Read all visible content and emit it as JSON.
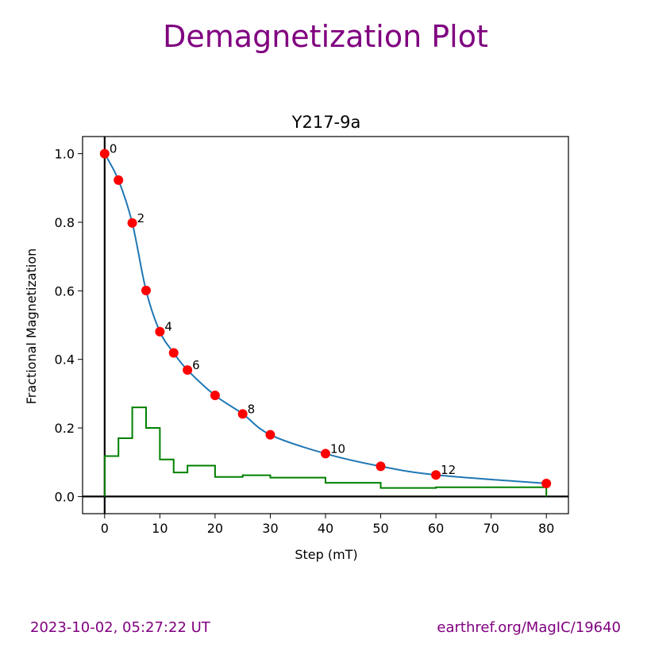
{
  "figure": {
    "suptitle": "Demagnetization Plot",
    "timestamp": "2023-10-02, 05:27:22 UT",
    "source": "earthref.org/MagIC/19640"
  },
  "colors": {
    "title": "#800080",
    "curve": "#1f77b4",
    "points": "#ff0000",
    "increments": "#008000",
    "axes_lines": "#000000"
  },
  "chart_data": {
    "type": "line",
    "title": "Y217-9a",
    "xlabel": "Step (mT)",
    "ylabel": "Fractional Magnetization",
    "xlim": [
      -4,
      84
    ],
    "ylim": [
      -0.05,
      1.05
    ],
    "xticks": [
      0,
      10,
      20,
      30,
      40,
      50,
      60,
      70,
      80
    ],
    "yticks": [
      0.0,
      0.2,
      0.4,
      0.6,
      0.8,
      1.0
    ],
    "ytick_labels": [
      "0.0",
      "0.2",
      "0.4",
      "0.6",
      "0.8",
      "1.0"
    ],
    "grid": false,
    "series": [
      {
        "kind": "demag-curve",
        "x": [
          0,
          2.5,
          5,
          7.5,
          10,
          12.5,
          15,
          20,
          25,
          30,
          40,
          50,
          60,
          80
        ],
        "y": [
          1.0,
          0.923,
          0.798,
          0.601,
          0.481,
          0.419,
          0.369,
          0.295,
          0.241,
          0.18,
          0.125,
          0.088,
          0.063,
          0.038
        ],
        "point_labels": [
          "0",
          "",
          "2",
          "",
          "4",
          "",
          "6",
          "",
          "8",
          "",
          "10",
          "",
          "12",
          ""
        ]
      },
      {
        "kind": "increment-steps",
        "x": [
          0,
          2.5,
          5,
          7.5,
          10,
          12.5,
          15,
          20,
          25,
          30,
          40,
          50,
          60,
          80
        ],
        "y": [
          0.118,
          0.17,
          0.26,
          0.2,
          0.108,
          0.07,
          0.09,
          0.057,
          0.062,
          0.055,
          0.04,
          0.025,
          0.027,
          0.027
        ]
      }
    ]
  }
}
